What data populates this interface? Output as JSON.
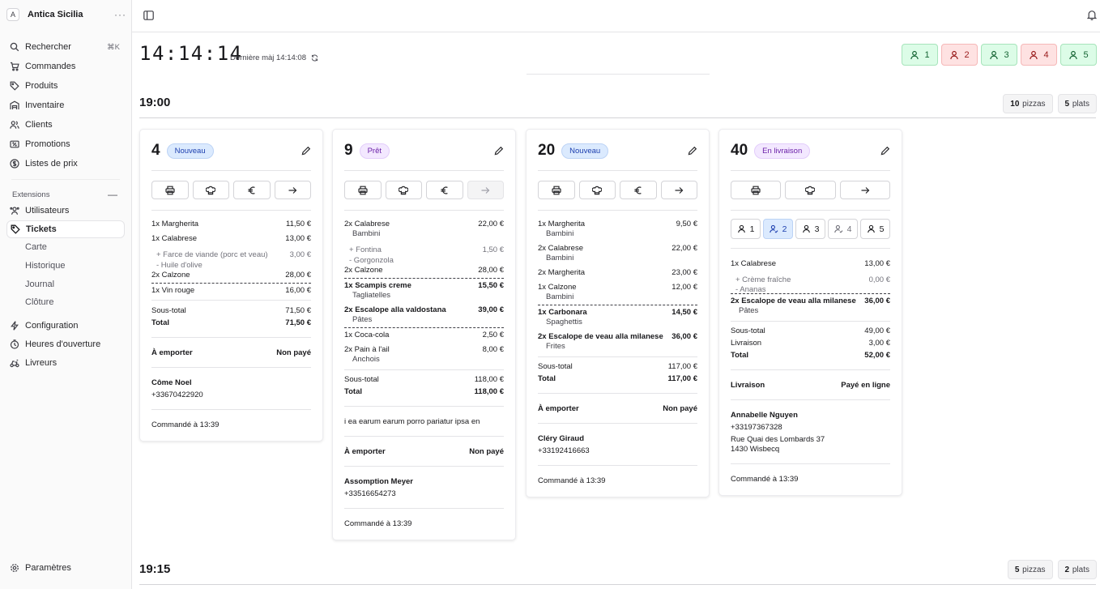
{
  "sidebar": {
    "workspace": {
      "initial": "A",
      "name": "Antica Sicilia",
      "more": "···"
    },
    "nav": [
      {
        "label": "Rechercher",
        "icon": "search-icon",
        "shortcut": "⌘K"
      },
      {
        "label": "Commandes",
        "icon": "cart-icon"
      },
      {
        "label": "Produits",
        "icon": "tag-icon"
      },
      {
        "label": "Inventaire",
        "icon": "warehouse-icon"
      },
      {
        "label": "Clients",
        "icon": "users-icon"
      },
      {
        "label": "Promotions",
        "icon": "ticket-percent-icon"
      },
      {
        "label": "Listes de prix",
        "icon": "dollar-circle-icon"
      }
    ],
    "extensions_label": "Extensions",
    "extensions": [
      {
        "label": "Utilisateurs",
        "icon": "users-cog-icon"
      },
      {
        "label": "Tickets",
        "icon": "tag-icon"
      }
    ],
    "tickets_sub": [
      "Carte",
      "Historique",
      "Journal",
      "Clôture"
    ],
    "more": [
      {
        "label": "Configuration",
        "icon": "bolt-icon"
      },
      {
        "label": "Heures d'ouverture",
        "icon": "clock-icon"
      },
      {
        "label": "Livreurs",
        "icon": "delivery-icon"
      }
    ],
    "settings": {
      "label": "Paramètres",
      "icon": "gear-icon"
    }
  },
  "header": {
    "clock": "14:14:14",
    "last_update": "Dernière màj 14:14:08",
    "tables": [
      {
        "n": "1",
        "state": "green"
      },
      {
        "n": "2",
        "state": "red"
      },
      {
        "n": "3",
        "state": "green"
      },
      {
        "n": "4",
        "state": "red"
      },
      {
        "n": "5",
        "state": "green"
      }
    ]
  },
  "slots": [
    {
      "time": "19:00",
      "pizzas_n": "10",
      "pizzas_l": "pizzas",
      "plats_n": "5",
      "plats_l": "plats"
    },
    {
      "time": "19:15",
      "pizzas_n": "5",
      "pizzas_l": "pizzas",
      "plats_n": "2",
      "plats_l": "plats"
    }
  ],
  "cards": [
    {
      "num": "4",
      "status": "Nouveau",
      "lines": [
        "1x Margherita",
        "11,50 €",
        "1x Calabrese",
        "13,00 €",
        "+ Farce de viande (porc et veau)",
        "3,00 €",
        "- Huile d'olive",
        "2x Calzone",
        "28,00 €",
        "1x Vin rouge",
        "16,00 €"
      ],
      "subtotal_l": "Sous-total",
      "subtotal": "71,50 €",
      "total_l": "Total",
      "total": "71,50 €",
      "mode": "À emporter",
      "pay": "Non payé",
      "customer": "Côme Noel",
      "phone": "+33670422920",
      "ordered": "Commandé à 13:39"
    },
    {
      "num": "9",
      "status": "Prêt",
      "lines": [
        "2x Calabrese",
        "22,00 €",
        "Bambini",
        "+ Fontina",
        "1,50 €",
        "- Gorgonzola",
        "2x Calzone",
        "28,00 €",
        "1x Scampis creme",
        "15,50 €",
        "Tagliatelles",
        "2x Escalope alla valdostana",
        "39,00 €",
        "Pâtes",
        "1x Coca-cola",
        "2,50 €",
        "2x Pain à l'ail",
        "8,00 €",
        "Anchois"
      ],
      "subtotal_l": "Sous-total",
      "subtotal": "118,00 €",
      "total_l": "Total",
      "total": "118,00 €",
      "note": "i ea earum earum porro pariatur ipsa en",
      "mode": "À emporter",
      "pay": "Non payé",
      "customer": "Assomption Meyer",
      "phone": "+33516654273",
      "ordered": "Commandé à 13:39"
    },
    {
      "num": "20",
      "status": "Nouveau",
      "lines": [
        "1x Margherita",
        "9,50 €",
        "Bambini",
        "2x Calabrese",
        "22,00 €",
        "Bambini",
        "2x Margherita",
        "23,00 €",
        "1x Calzone",
        "12,00 €",
        "Bambini",
        "1x Carbonara",
        "14,50 €",
        "Spaghettis",
        "2x Escalope de veau alla milanese",
        "36,00 €",
        "Frites"
      ],
      "subtotal_l": "Sous-total",
      "subtotal": "117,00 €",
      "total_l": "Total",
      "total": "117,00 €",
      "mode": "À emporter",
      "pay": "Non payé",
      "customer": "Cléry Giraud",
      "phone": "+33192416663",
      "ordered": "Commandé à 13:39"
    },
    {
      "num": "40",
      "status": "En livraison",
      "seats": [
        "1",
        "2",
        "3",
        "4",
        "5"
      ],
      "lines": [
        "1x Calabrese",
        "13,00 €",
        "+ Crème fraîche",
        "0,00 €",
        "- Ananas",
        "2x Escalope de veau alla milanese",
        "36,00 €",
        "Pâtes"
      ],
      "subtotal_l": "Sous-total",
      "subtotal": "49,00 €",
      "delivery_l": "Livraison",
      "delivery": "3,00 €",
      "total_l": "Total",
      "total": "52,00 €",
      "mode": "Livraison",
      "pay": "Payé en ligne",
      "customer": "Annabelle Nguyen",
      "phone": "+33197367328",
      "addr1": "Rue Quai des Lombards 37",
      "addr2": "1430 Wisbecq",
      "ordered": "Commandé à 13:39"
    }
  ]
}
